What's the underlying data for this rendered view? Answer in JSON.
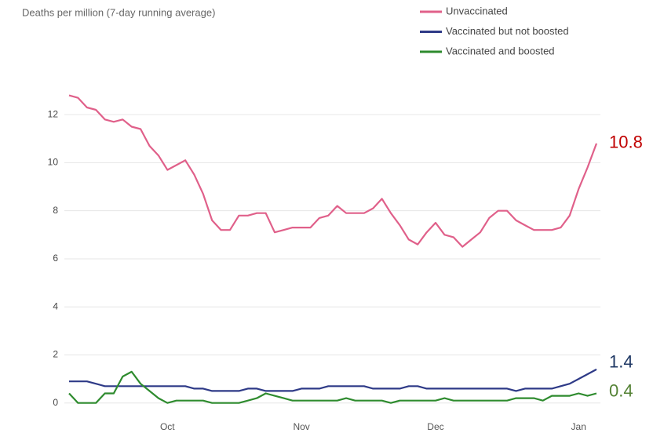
{
  "chart_data": {
    "type": "line",
    "title": "Deaths per million (7-day running average)",
    "categories": [
      null,
      null,
      null,
      null,
      null,
      null,
      null,
      null,
      null,
      null,
      null,
      "Oct",
      null,
      null,
      null,
      null,
      null,
      null,
      null,
      null,
      null,
      null,
      null,
      null,
      null,
      null,
      "Nov",
      null,
      null,
      null,
      null,
      null,
      null,
      null,
      null,
      null,
      null,
      null,
      null,
      null,
      null,
      "Dec",
      null,
      null,
      null,
      null,
      null,
      null,
      null,
      null,
      null,
      null,
      null,
      null,
      null,
      null,
      null,
      "Jan",
      null,
      null
    ],
    "series": [
      {
        "name": "Unvaccinated",
        "color": "#e0608a",
        "end_label": "10.8",
        "end_label_color": "#c00000",
        "values": [
          12.8,
          12.7,
          12.3,
          12.2,
          11.8,
          11.7,
          11.8,
          11.5,
          11.4,
          10.7,
          10.3,
          9.7,
          9.9,
          10.1,
          9.5,
          8.7,
          7.6,
          7.2,
          7.2,
          7.8,
          7.8,
          7.9,
          7.9,
          7.1,
          7.2,
          7.3,
          7.3,
          7.3,
          7.7,
          7.8,
          8.2,
          7.9,
          7.9,
          7.9,
          8.1,
          8.5,
          7.9,
          7.4,
          6.8,
          6.6,
          7.1,
          7.5,
          7.0,
          6.9,
          6.5,
          6.8,
          7.1,
          7.7,
          8.0,
          8.0,
          7.6,
          7.4,
          7.2,
          7.2,
          7.2,
          7.3,
          7.8,
          8.9,
          9.8,
          10.8
        ]
      },
      {
        "name": "Vaccinated but not boosted",
        "color": "#2e3a87",
        "end_label": "1.4",
        "end_label_color": "#1f3864",
        "values": [
          0.9,
          0.9,
          0.9,
          0.8,
          0.7,
          0.7,
          0.7,
          0.7,
          0.7,
          0.7,
          0.7,
          0.7,
          0.7,
          0.7,
          0.6,
          0.6,
          0.5,
          0.5,
          0.5,
          0.5,
          0.6,
          0.6,
          0.5,
          0.5,
          0.5,
          0.5,
          0.6,
          0.6,
          0.6,
          0.7,
          0.7,
          0.7,
          0.7,
          0.7,
          0.6,
          0.6,
          0.6,
          0.6,
          0.7,
          0.7,
          0.6,
          0.6,
          0.6,
          0.6,
          0.6,
          0.6,
          0.6,
          0.6,
          0.6,
          0.6,
          0.5,
          0.6,
          0.6,
          0.6,
          0.6,
          0.7,
          0.8,
          1.0,
          1.2,
          1.4
        ]
      },
      {
        "name": "Vaccinated and boosted",
        "color": "#2e8b2e",
        "end_label": "0.4",
        "end_label_color": "#548235",
        "values": [
          0.4,
          0.0,
          0.0,
          0.0,
          0.4,
          0.4,
          1.1,
          1.3,
          0.8,
          0.5,
          0.2,
          0.0,
          0.1,
          0.1,
          0.1,
          0.1,
          0.0,
          0.0,
          0.0,
          0.0,
          0.1,
          0.2,
          0.4,
          0.3,
          0.2,
          0.1,
          0.1,
          0.1,
          0.1,
          0.1,
          0.1,
          0.2,
          0.1,
          0.1,
          0.1,
          0.1,
          0.0,
          0.1,
          0.1,
          0.1,
          0.1,
          0.1,
          0.2,
          0.1,
          0.1,
          0.1,
          0.1,
          0.1,
          0.1,
          0.1,
          0.2,
          0.2,
          0.2,
          0.1,
          0.3,
          0.3,
          0.3,
          0.4,
          0.3,
          0.4
        ]
      }
    ],
    "ylim": [
      -0.4,
      13.8
    ],
    "yticks": [
      0,
      2,
      4,
      6,
      8,
      10,
      12
    ],
    "grid": true,
    "legend": "top-right"
  }
}
